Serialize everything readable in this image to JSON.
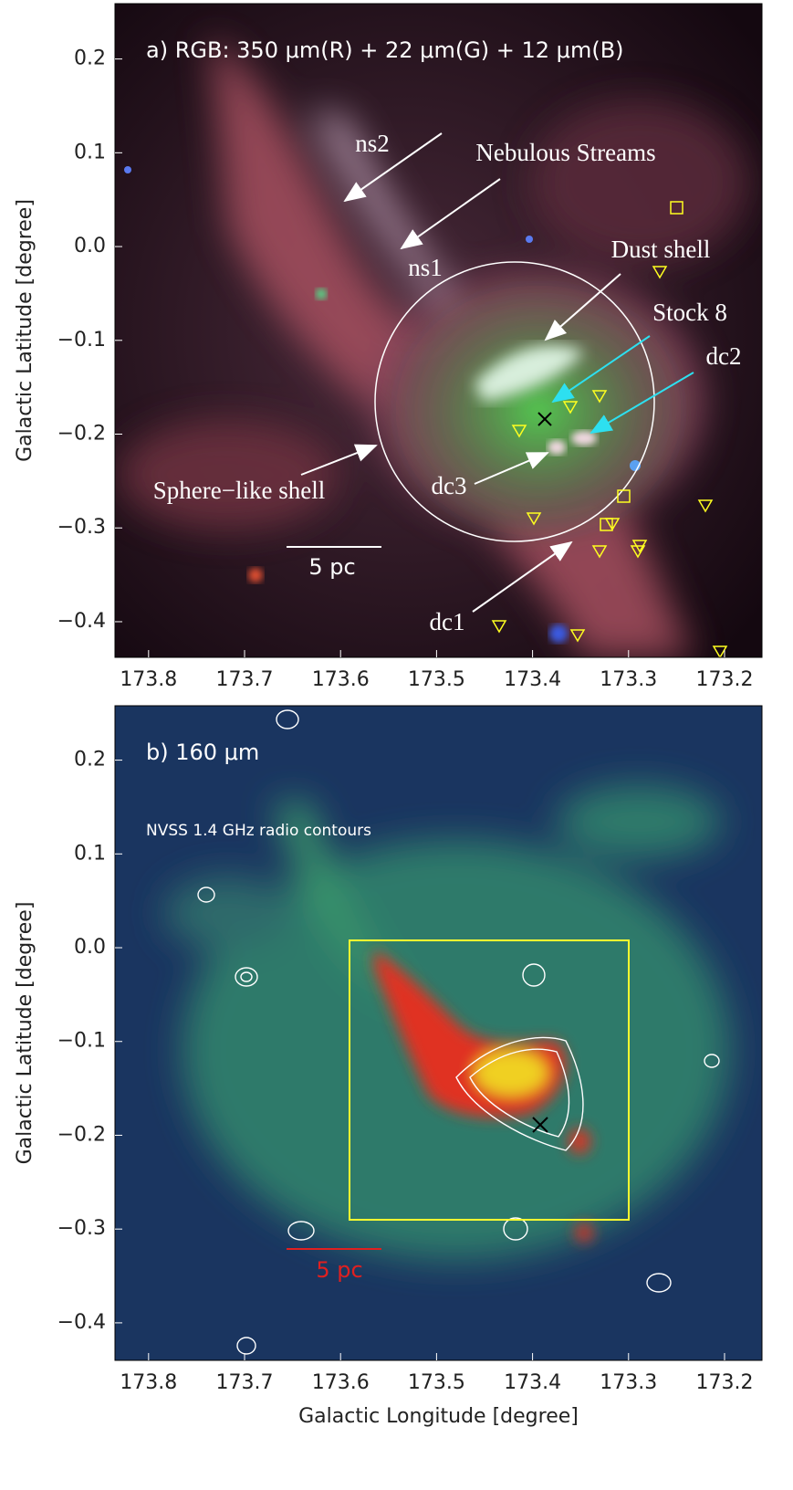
{
  "chart_data": [
    {
      "type": "image",
      "title": "a) RGB: 350 μm(R) + 22 μm(G) + 12 μm(B)",
      "ylabel": "Galactic Latitude [degree]",
      "xlim": [
        173.835,
        173.161
      ],
      "ylim": [
        -0.438,
        0.259
      ],
      "xticks": [
        173.8,
        173.7,
        173.6,
        173.5,
        173.4,
        173.3,
        173.2
      ],
      "yticks": [
        0.2,
        0.1,
        {
          "value": 0,
          "label": "0.0"
        },
        {
          "value": -0.1,
          "label": "−0.1"
        },
        {
          "value": -0.2,
          "label": "−0.2"
        },
        {
          "value": -0.3,
          "label": "−0.3"
        },
        {
          "value": -0.4,
          "label": "−0.4"
        }
      ],
      "annotations": [
        "ns2",
        "Nebulous Streams",
        "ns1",
        "Dust shell",
        "Stock 8",
        "dc2",
        "Sphere−like shell",
        "dc3",
        "dc1",
        "5 pc"
      ]
    },
    {
      "type": "image",
      "title": "b) 160 μm",
      "xlabel": "Galactic Longitude [degree]",
      "ylabel": "Galactic Latitude [degree]",
      "xlim": [
        173.835,
        173.161
      ],
      "ylim": [
        -0.44,
        0.258
      ],
      "xticks": [
        173.8,
        173.7,
        173.6,
        173.5,
        173.4,
        173.3,
        173.2
      ],
      "yticks": [
        0.2,
        0.1,
        {
          "value": 0,
          "label": "0.0"
        },
        {
          "value": -0.1,
          "label": "−0.1"
        },
        {
          "value": -0.2,
          "label": "−0.2"
        },
        {
          "value": -0.3,
          "label": "−0.3"
        },
        {
          "value": -0.4,
          "label": "−0.4"
        }
      ],
      "annotations": [
        "NVSS 1.4 GHz radio contours",
        "5 pc"
      ]
    }
  ]
}
